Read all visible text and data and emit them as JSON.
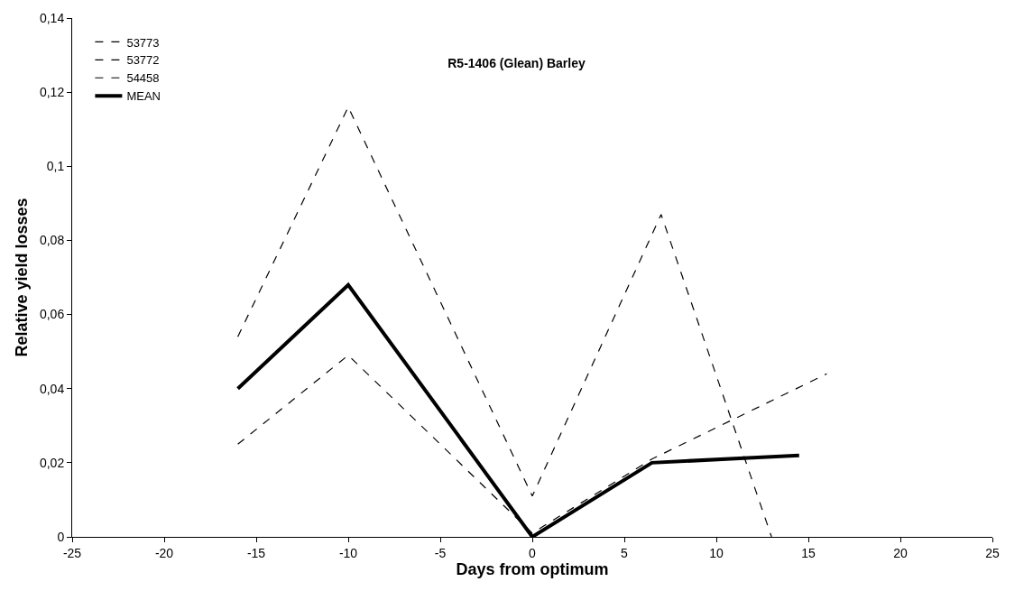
{
  "chart_data": {
    "type": "line",
    "title": "R5-1406 (Glean) Barley",
    "xlabel": "Days from optimum",
    "ylabel": "Relative yield losses",
    "series": [
      {
        "name": "53773",
        "color": "#000000",
        "line_style": "dashed",
        "x": [
          -16,
          -10,
          0,
          7,
          13
        ],
        "values": [
          0.054,
          0.116,
          0.011,
          0.087,
          0.0
        ]
      },
      {
        "name": "53772",
        "color": "#000000",
        "line_style": "dashed",
        "x": [
          -16,
          -10,
          0,
          6.5,
          16
        ],
        "values": [
          0.025,
          0.049,
          0.001,
          0.021,
          0.044
        ]
      },
      {
        "name": "54458",
        "color": "#000000",
        "line_style": "dashed",
        "values": [
          null
        ]
      },
      {
        "name": "MEAN",
        "color": "#000000",
        "line_style": "solid",
        "x": [
          -16,
          -10,
          0,
          6.5,
          14.5
        ],
        "values": [
          0.04,
          0.068,
          0.0,
          0.02,
          0.022
        ]
      }
    ],
    "xlim": [
      -25,
      25
    ],
    "xticks": [
      -25,
      -20,
      -15,
      -10,
      -5,
      0,
      5,
      10,
      15,
      20,
      25
    ],
    "ylim": [
      0,
      0.14
    ],
    "yticks": [
      {
        "value": 0,
        "label": "0"
      },
      {
        "value": 0.02,
        "label": "0,02"
      },
      {
        "value": 0.04,
        "label": "0,04"
      },
      {
        "value": 0.06,
        "label": "0,06"
      },
      {
        "value": 0.08,
        "label": "0,08"
      },
      {
        "value": 0.1,
        "label": "0,1"
      },
      {
        "value": 0.12,
        "label": "0,12"
      },
      {
        "value": 0.14,
        "label": "0,14"
      }
    ],
    "grid": false,
    "legend": "top left",
    "marker": "none"
  }
}
